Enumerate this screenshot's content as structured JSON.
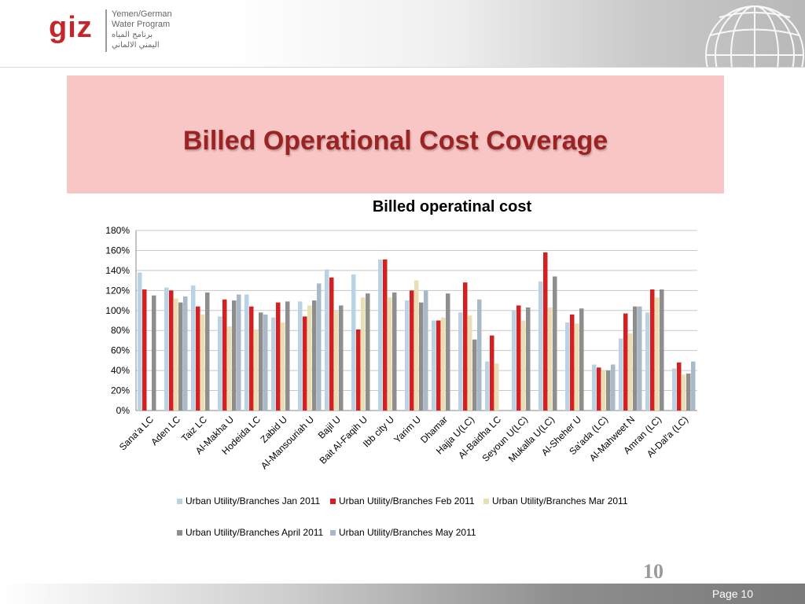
{
  "header": {
    "logo_text": "giz",
    "program_line1": "Yemen/German",
    "program_line2": "Water Program",
    "program_ar1": "برنامج المياه",
    "program_ar2": "اليمني الالماني"
  },
  "slide": {
    "title": "Billed Operational Cost Coverage",
    "page_number": "10",
    "footer": "Page 10"
  },
  "chart_data": {
    "type": "bar",
    "title": "Billed operatinal cost",
    "xlabel": "",
    "ylabel": "",
    "ylim": [
      0,
      180
    ],
    "yticks": [
      "0%",
      "20%",
      "40%",
      "60%",
      "80%",
      "100%",
      "120%",
      "140%",
      "160%",
      "180%"
    ],
    "grid": true,
    "legend_position": "bottom",
    "categories": [
      "Sana'a LC",
      "Aden LC",
      "Taiz LC",
      "Al-Makha U",
      "Hodeida LC",
      "Zabid U",
      "Al-Mansouriah U",
      "Bajil U",
      "Bait Al-Faqih U",
      "Ibb city U",
      "Yarim U",
      "Dhamar",
      "Hajja U(LC)",
      "Al-Baidha LC",
      "Seyoun U(LC)",
      "Mukalla U(LC)",
      "Al-Sheher U",
      "Sa'ada (LC)",
      "Al-Mahweet N",
      "Amran (LC)",
      "Al-Dal'a (LC)"
    ],
    "series": [
      {
        "name": "Urban Utility/Branches  Jan 2011",
        "color": "#b9d3e4",
        "values": [
          138,
          123,
          125,
          94,
          116,
          93,
          109,
          141,
          136,
          151,
          110,
          90,
          98,
          49,
          100,
          129,
          88,
          46,
          72,
          98,
          42
        ]
      },
      {
        "name": "Urban Utility/Branches  Feb 2011",
        "color": "#d42020",
        "values": [
          121,
          120,
          104,
          111,
          104,
          108,
          94,
          133,
          81,
          151,
          120,
          90,
          128,
          75,
          105,
          158,
          96,
          43,
          97,
          121,
          48
        ]
      },
      {
        "name": "Urban Utility/Branches  Mar 2011",
        "color": "#e8dfb4",
        "values": [
          null,
          112,
          96,
          84,
          81,
          88,
          105,
          100,
          113,
          113,
          130,
          93,
          95,
          47,
          90,
          103,
          87,
          40,
          77,
          113,
          36
        ]
      },
      {
        "name": "Urban Utility/Branches  April 2011",
        "color": "#8e8e8e",
        "values": [
          115,
          108,
          118,
          110,
          98,
          109,
          110,
          105,
          117,
          118,
          108,
          117,
          71,
          null,
          103,
          134,
          102,
          40,
          104,
          121,
          37
        ]
      },
      {
        "name": "Urban Utility/Branches  May 2011",
        "color": "#a9b9c8",
        "values": [
          null,
          114,
          null,
          116,
          96,
          null,
          127,
          null,
          null,
          null,
          120,
          null,
          111,
          null,
          null,
          null,
          null,
          46,
          104,
          null,
          49
        ]
      }
    ]
  }
}
